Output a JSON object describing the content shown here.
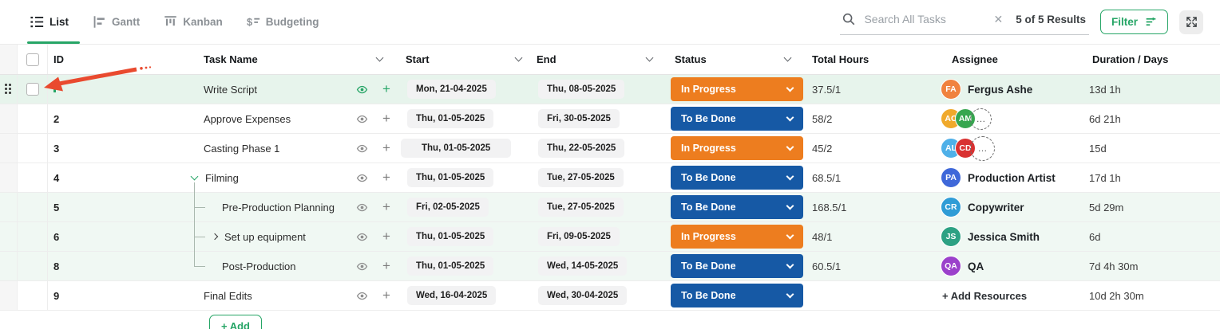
{
  "colors": {
    "green": "#26A566",
    "status_orange": "#ED7D1F",
    "status_blue": "#1659A5",
    "arrow": "#E94A2F"
  },
  "tabs": [
    {
      "label": "List",
      "active": true
    },
    {
      "label": "Gantt",
      "active": false
    },
    {
      "label": "Kanban",
      "active": false
    },
    {
      "label": "Budgeting",
      "active": false
    }
  ],
  "toolbar": {
    "search_placeholder": "Search All Tasks",
    "results_text": "5 of 5 Results",
    "filter_label": "Filter"
  },
  "table": {
    "columns": {
      "id": "ID",
      "task_name": "Task Name",
      "start": "Start",
      "end": "End",
      "status": "Status",
      "total_hours": "Total Hours",
      "assignee": "Assignee",
      "duration": "Duration / Days"
    },
    "add_label": "+ Add",
    "rows": [
      {
        "id": "",
        "name": "Write Script",
        "start": "Mon, 21-04-2025",
        "end": "Thu, 08-05-2025",
        "status": {
          "label": "In Progress",
          "color": "#ED7D1F"
        },
        "hours": "37.5/1",
        "assignees": [
          {
            "initials": "FA",
            "color": "#F0823F"
          }
        ],
        "assignee_name": "Fergus Ashe",
        "duration": "13d 1h",
        "tint": "strong",
        "hover": true
      },
      {
        "id": "2",
        "name": "Approve Expenses",
        "start": "Thu, 01-05-2025",
        "end": "Fri, 30-05-2025",
        "status": {
          "label": "To Be Done",
          "color": "#1659A5"
        },
        "hours": "58/2",
        "assignees": [
          {
            "initials": "AC",
            "color": "#F0A92B"
          },
          {
            "initials": "AM",
            "color": "#36A64F"
          }
        ],
        "overflow": "…",
        "duration": "6d 21h"
      },
      {
        "id": "3",
        "name": "Casting Phase 1",
        "start": "Thu, 01-05-2025",
        "start_wide": true,
        "end": "Thu, 22-05-2025",
        "status": {
          "label": "In Progress",
          "color": "#ED7D1F"
        },
        "hours": "45/2",
        "assignees": [
          {
            "initials": "AL",
            "color": "#4FB0E8"
          },
          {
            "initials": "CD",
            "color": "#D93131"
          }
        ],
        "overflow": "…",
        "overflow_big": true,
        "duration": "15d"
      },
      {
        "id": "4",
        "name": "Filming",
        "parent_open": true,
        "start": "Thu, 01-05-2025",
        "end": "Tue, 27-05-2025",
        "status": {
          "label": "To Be Done",
          "color": "#1659A5"
        },
        "hours": "68.5/1",
        "assignees": [
          {
            "initials": "PA",
            "color": "#3F68D9"
          }
        ],
        "assignee_name": "Production Artist",
        "duration": "17d 1h"
      },
      {
        "id": "5",
        "name": "Pre-Production Planning",
        "tree": "mid",
        "start": "Fri, 02-05-2025",
        "end": "Tue, 27-05-2025",
        "status": {
          "label": "To Be Done",
          "color": "#1659A5"
        },
        "hours": "168.5/1",
        "assignees": [
          {
            "initials": "CR",
            "color": "#2F9CD6"
          }
        ],
        "assignee_name": "Copywriter",
        "duration": "5d 29m",
        "tint": "light"
      },
      {
        "id": "6",
        "name": "Set up equipment",
        "tree": "mid",
        "child_chevron": true,
        "start": "Thu, 01-05-2025",
        "end": "Fri, 09-05-2025",
        "status": {
          "label": "In Progress",
          "color": "#ED7D1F"
        },
        "hours": "48/1",
        "assignees": [
          {
            "initials": "JS",
            "color": "#2DA183"
          }
        ],
        "assignee_name": "Jessica Smith",
        "duration": "6d",
        "tint": "light"
      },
      {
        "id": "8",
        "name": "Post-Production",
        "tree": "end",
        "start": "Thu, 01-05-2025",
        "end": "Wed, 14-05-2025",
        "status": {
          "label": "To Be Done",
          "color": "#1659A5"
        },
        "hours": "60.5/1",
        "assignees": [
          {
            "initials": "QA",
            "color": "#9B41CB"
          }
        ],
        "assignee_name": "QA",
        "duration": "7d 4h 30m",
        "tint": "light"
      },
      {
        "id": "9",
        "name": "Final Edits",
        "start": "Wed, 16-04-2025",
        "end": "Wed, 30-04-2025",
        "status": {
          "label": "To Be Done",
          "color": "#1659A5"
        },
        "hours": "",
        "add_resources": "+ Add Resources",
        "duration": "10d 2h 30m"
      }
    ]
  }
}
